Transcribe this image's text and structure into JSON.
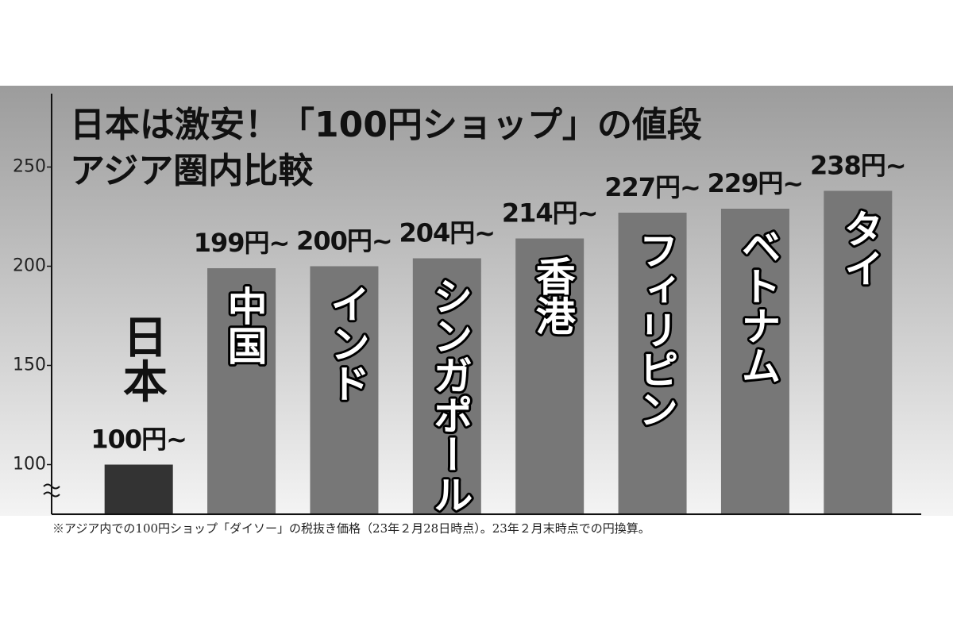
{
  "chart_data": {
    "type": "bar",
    "title": [
      "日本は激安！「100円ショップ」の値段",
      "アジア圏内比較"
    ],
    "categories": [
      "日本",
      "中国",
      "インド",
      "シンガポール",
      "香港",
      "フィリピン",
      "ベトナム",
      "タイ"
    ],
    "values": [
      100,
      199,
      200,
      204,
      214,
      227,
      229,
      238
    ],
    "value_labels": [
      "100円~",
      "199円~",
      "200円~",
      "204円~",
      "214円~",
      "227円~",
      "229円~",
      "238円~"
    ],
    "colors": [
      "#333333",
      "#777777",
      "#777777",
      "#777777",
      "#777777",
      "#777777",
      "#777777",
      "#777777"
    ],
    "ylim": [
      75,
      290
    ],
    "yticks": [
      100,
      150,
      200,
      250
    ],
    "grid": false,
    "footnote": "※アジア内での100円ショップ「ダイソー」の税抜き価格（23年２月28日時点）。23年２月末時点での円換算。"
  }
}
